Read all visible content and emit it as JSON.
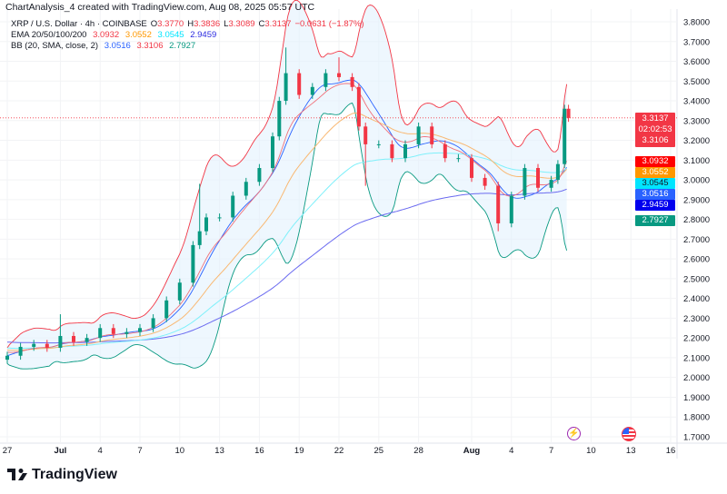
{
  "header": {
    "title": "ChartAnalysis_4 created with TradingView.com, Aug 08, 2025 05:57 UTC"
  },
  "legend": {
    "symbol": "XRP / U.S. Dollar · 4h · COINBASE",
    "ohlc": {
      "o_label": "O",
      "o": "3.3770",
      "h_label": "H",
      "h": "3.3836",
      "l_label": "L",
      "l": "3.3089",
      "c_label": "C",
      "c": "3.3137",
      "change": "−0.0631 (−1.87%)"
    },
    "ema": {
      "label": "EMA 20/50/100/200",
      "v20": "3.0932",
      "v50": "3.0552",
      "v100": "3.0545",
      "v200": "2.9459"
    },
    "bb": {
      "label": "BB (20, SMA, close, 2)",
      "basis": "3.0516",
      "upper": "3.3106",
      "lower": "2.7927"
    }
  },
  "price_tags": {
    "last": "3.3137",
    "countdown": "02:02:53",
    "bb_upper": "3.3106",
    "ema20": "3.0932",
    "ema50": "3.0552",
    "ema100": "3.0545",
    "bb_basis": "3.0516",
    "ema200": "2.9459",
    "bb_lower": "2.7927"
  },
  "colors": {
    "up": "#089981",
    "down": "#f23645",
    "ema20": "#ff0000",
    "ema50": "#ff9800",
    "ema100": "#00e5ff",
    "ema200": "#2a2ae0",
    "bb_basis": "#2962ff",
    "bb_upper": "#f23645",
    "bb_lower": "#089981",
    "bb_fill": "#e3f2fd"
  },
  "event_icons": [
    "lightning-icon",
    "us-flag-icon"
  ],
  "footer": {
    "brand": "TradingView"
  },
  "chart_data": {
    "type": "candlestick",
    "symbol": "XRP/USD",
    "interval": "4h",
    "ylim": [
      1.65,
      3.85
    ],
    "y_ticks": [
      "3.8000",
      "3.7000",
      "3.6000",
      "3.5000",
      "3.4000",
      "3.3000",
      "3.2000",
      "3.1000",
      "3.0000",
      "2.9000",
      "2.8000",
      "2.7000",
      "2.6000",
      "2.5000",
      "2.4000",
      "2.3000",
      "2.2000",
      "2.1000",
      "2.0000",
      "1.9000",
      "1.8000",
      "1.7000"
    ],
    "x_ticks": [
      {
        "label": "27",
        "day": 0
      },
      {
        "label": "Jul",
        "day": 4,
        "bold": true
      },
      {
        "label": "4",
        "day": 7
      },
      {
        "label": "7",
        "day": 10
      },
      {
        "label": "10",
        "day": 13
      },
      {
        "label": "13",
        "day": 16
      },
      {
        "label": "16",
        "day": 19
      },
      {
        "label": "19",
        "day": 22
      },
      {
        "label": "22",
        "day": 25
      },
      {
        "label": "25",
        "day": 28
      },
      {
        "label": "28",
        "day": 31
      },
      {
        "label": "Aug",
        "day": 35,
        "bold": true
      },
      {
        "label": "4",
        "day": 38
      },
      {
        "label": "7",
        "day": 41
      },
      {
        "label": "10",
        "day": 44
      },
      {
        "label": "13",
        "day": 47
      },
      {
        "label": "16",
        "day": 50
      }
    ],
    "closes": [
      [
        0,
        2.11
      ],
      [
        1,
        2.155
      ],
      [
        2,
        2.17
      ],
      [
        3,
        2.15
      ],
      [
        4,
        2.21
      ],
      [
        5,
        2.18
      ],
      [
        6,
        2.2
      ],
      [
        7,
        2.25
      ],
      [
        8,
        2.22
      ],
      [
        9,
        2.23
      ],
      [
        10,
        2.25
      ],
      [
        11,
        2.3
      ],
      [
        12,
        2.39
      ],
      [
        13,
        2.48
      ],
      [
        14,
        2.67
      ],
      [
        14.5,
        2.74
      ],
      [
        15,
        2.81
      ],
      [
        16,
        2.81
      ],
      [
        17,
        2.92
      ],
      [
        18,
        2.99
      ],
      [
        19,
        3.06
      ],
      [
        20,
        3.22
      ],
      [
        20.5,
        3.4
      ],
      [
        21,
        3.54
      ],
      [
        22,
        3.43
      ],
      [
        23,
        3.47
      ],
      [
        24,
        3.54
      ],
      [
        25,
        3.52
      ],
      [
        26,
        3.47
      ],
      [
        26.5,
        3.27
      ],
      [
        27,
        3.18
      ],
      [
        28,
        3.18
      ],
      [
        29,
        3.11
      ],
      [
        30,
        3.18
      ],
      [
        31,
        3.27
      ],
      [
        32,
        3.18
      ],
      [
        33,
        3.11
      ],
      [
        34,
        3.11
      ],
      [
        35,
        3.01
      ],
      [
        36,
        2.97
      ],
      [
        37,
        2.78
      ],
      [
        38,
        2.92
      ],
      [
        39,
        3.06
      ],
      [
        40,
        2.96
      ],
      [
        41,
        3.0
      ],
      [
        41.5,
        3.08
      ],
      [
        42,
        3.36
      ],
      [
        42.3,
        3.3137
      ]
    ],
    "wicks": [
      [
        4,
        2.32
      ],
      [
        14.5,
        2.98
      ],
      [
        21,
        3.67
      ],
      [
        25,
        3.62
      ],
      [
        27,
        2.97
      ],
      [
        37,
        2.74
      ],
      [
        42,
        3.38
      ]
    ],
    "last_price": 3.3137
  }
}
